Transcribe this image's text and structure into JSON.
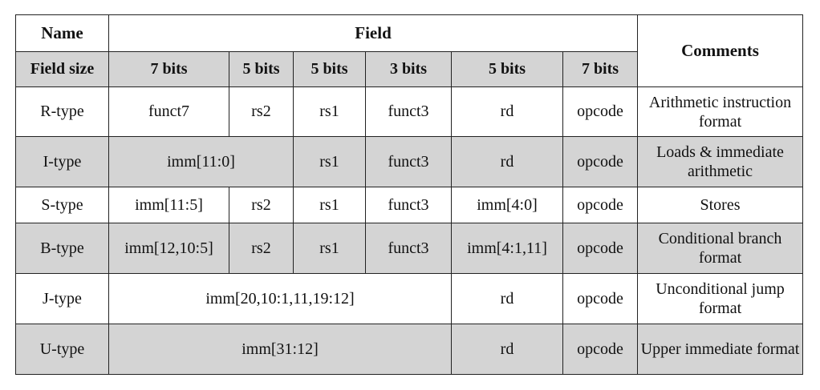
{
  "header": {
    "name": "Name",
    "field": "Field",
    "comments": "Comments",
    "field_size": "Field size",
    "sizes": [
      "7 bits",
      "5 bits",
      "5 bits",
      "3 bits",
      "5 bits",
      "7 bits"
    ]
  },
  "rows": {
    "r": {
      "name": "R-type",
      "funct7": "funct7",
      "rs2": "rs2",
      "rs1": "rs1",
      "funct3": "funct3",
      "rd": "rd",
      "opcode": "opcode",
      "comment": "Arithmetic instruction format"
    },
    "i": {
      "name": "I-type",
      "imm": "imm[11:0]",
      "rs1": "rs1",
      "funct3": "funct3",
      "rd": "rd",
      "opcode": "opcode",
      "comment": "Loads & immediate arithmetic"
    },
    "s": {
      "name": "S-type",
      "imm_hi": "imm[11:5]",
      "rs2": "rs2",
      "rs1": "rs1",
      "funct3": "funct3",
      "imm_lo": "imm[4:0]",
      "opcode": "opcode",
      "comment": "Stores"
    },
    "b": {
      "name": "B-type",
      "imm_hi": "imm[12,10:5]",
      "rs2": "rs2",
      "rs1": "rs1",
      "funct3": "funct3",
      "imm_lo": "imm[4:1,11]",
      "opcode": "opcode",
      "comment": "Conditional branch format"
    },
    "j": {
      "name": "J-type",
      "imm": "imm[20,10:1,11,19:12]",
      "rd": "rd",
      "opcode": "opcode",
      "comment": "Unconditional jump format"
    },
    "u": {
      "name": "U-type",
      "imm": "imm[31:12]",
      "rd": "rd",
      "opcode": "opcode",
      "comment": "Upper immediate format"
    }
  }
}
